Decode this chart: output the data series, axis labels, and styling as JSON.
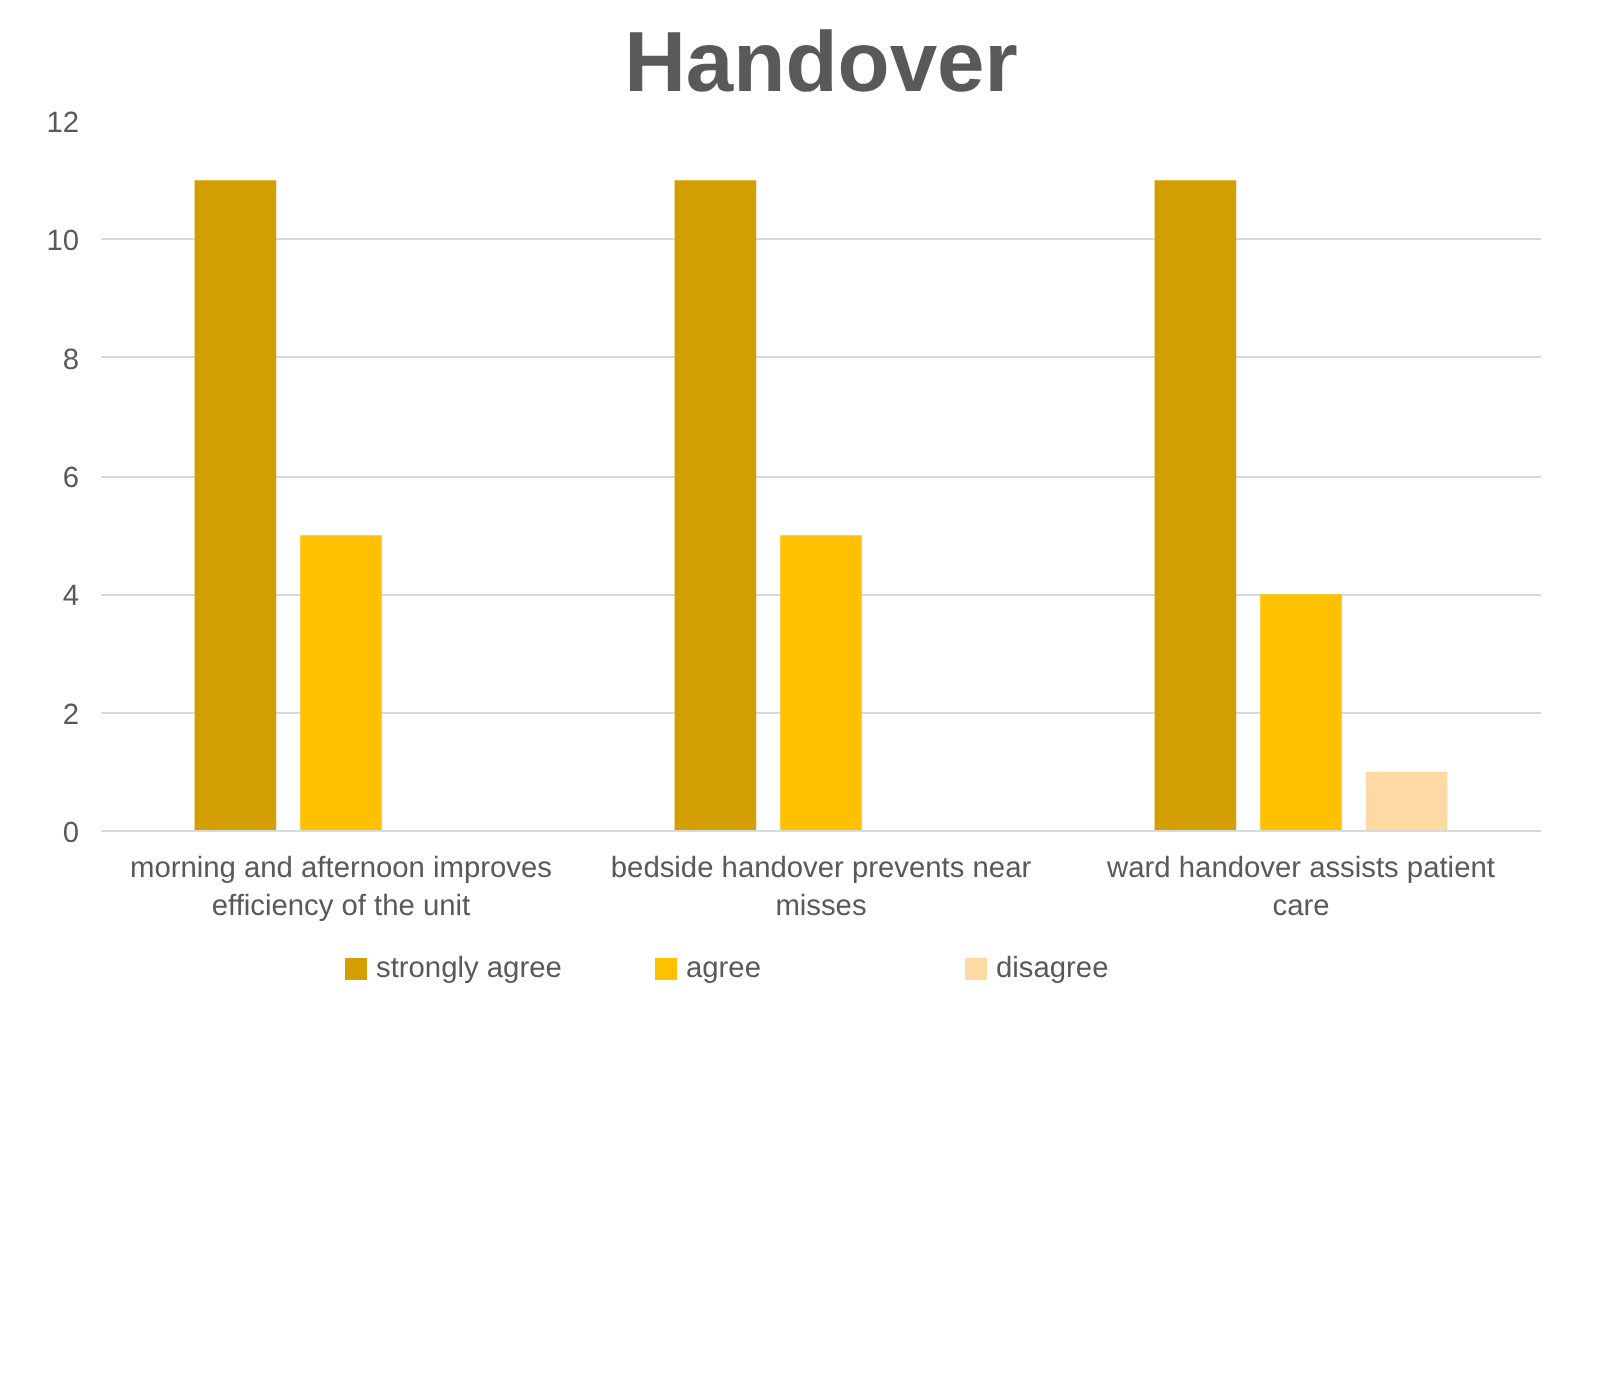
{
  "chart_data": {
    "type": "bar",
    "title": "Handover",
    "categories": [
      "morning and afternoon improves efficiency of the unit",
      "bedside handover prevents near misses",
      "ward handover assists patient care"
    ],
    "series": [
      {
        "name": "strongly agree",
        "color": "#d29f00",
        "values": [
          11,
          11,
          11
        ]
      },
      {
        "name": "agree",
        "color": "#ffc000",
        "values": [
          5,
          5,
          4
        ]
      },
      {
        "name": "disagree",
        "color": "#fdd9a3",
        "values": [
          null,
          null,
          1
        ]
      }
    ],
    "ylim": [
      0,
      12
    ],
    "yticks": [
      0,
      2,
      4,
      6,
      8,
      10,
      12
    ],
    "grid": "y",
    "legend": "bottom"
  }
}
